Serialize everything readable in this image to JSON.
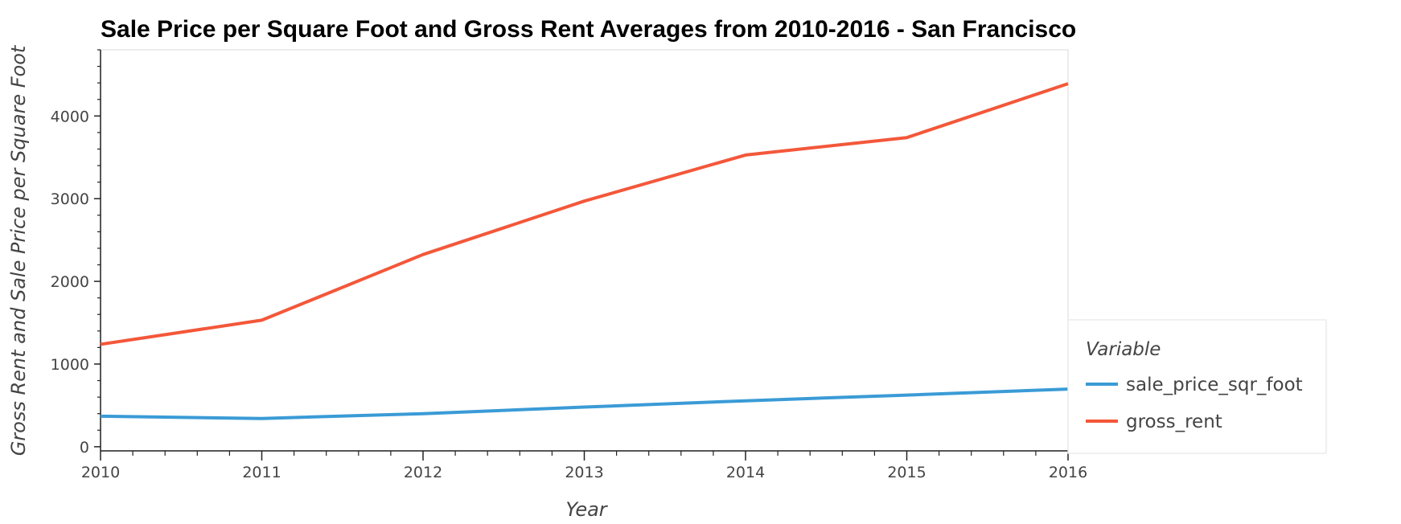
{
  "chart_data": {
    "type": "line",
    "title": "Sale Price per Square Foot and Gross Rent Averages from 2010-2016 - San Francisco",
    "xlabel": "Year",
    "ylabel": "Gross Rent and Sale Price per Square Foot",
    "x": [
      2010,
      2011,
      2012,
      2013,
      2014,
      2015,
      2016
    ],
    "xlim": [
      2010,
      2016
    ],
    "ylim": [
      -50,
      4800
    ],
    "x_ticks": [
      "2010",
      "2011",
      "2012",
      "2013",
      "2014",
      "2015",
      "2016"
    ],
    "y_ticks": [
      "0",
      "1000",
      "2000",
      "3000",
      "4000"
    ],
    "grid": false,
    "legend": {
      "title": "Variable",
      "placement": "right"
    },
    "series": [
      {
        "name": "sale_price_sqr_foot",
        "color": "#3a9bd6",
        "values": [
          369,
          342,
          400,
          480,
          556,
          625,
          697
        ]
      },
      {
        "name": "gross_rent",
        "color": "#f4573a",
        "values": [
          1239,
          1530,
          2324,
          2971,
          3528,
          3739,
          4391
        ]
      }
    ]
  }
}
